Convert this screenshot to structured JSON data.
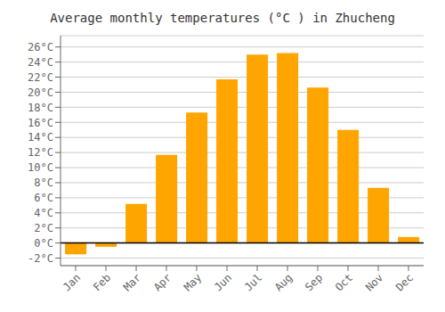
{
  "chart_data": {
    "type": "bar",
    "title": "Average monthly temperatures (°C ) in Zhucheng",
    "categories": [
      "Jan",
      "Feb",
      "Mar",
      "Apr",
      "May",
      "Jun",
      "Jul",
      "Aug",
      "Sep",
      "Oct",
      "Nov",
      "Dec"
    ],
    "values": [
      -1.5,
      -0.5,
      5.2,
      11.7,
      17.3,
      21.7,
      25.0,
      25.2,
      20.6,
      15.0,
      7.3,
      0.8
    ],
    "color": "#FFA500",
    "ylim": [
      -3.0,
      27.5
    ],
    "yticks": [
      {
        "value": -2,
        "label": "-2°C"
      },
      {
        "value": 0,
        "label": "0°C"
      },
      {
        "value": 2,
        "label": "2°C"
      },
      {
        "value": 4,
        "label": "4°C"
      },
      {
        "value": 6,
        "label": "6°C"
      },
      {
        "value": 8,
        "label": "8°C"
      },
      {
        "value": 10,
        "label": "10°C"
      },
      {
        "value": 12,
        "label": "12°C"
      },
      {
        "value": 14,
        "label": "14°C"
      },
      {
        "value": 16,
        "label": "16°C"
      },
      {
        "value": 18,
        "label": "18°C"
      },
      {
        "value": 20,
        "label": "20°C"
      },
      {
        "value": 22,
        "label": "22°C"
      },
      {
        "value": 24,
        "label": "24°C"
      },
      {
        "value": 26,
        "label": "26°C"
      }
    ],
    "grid": true
  }
}
